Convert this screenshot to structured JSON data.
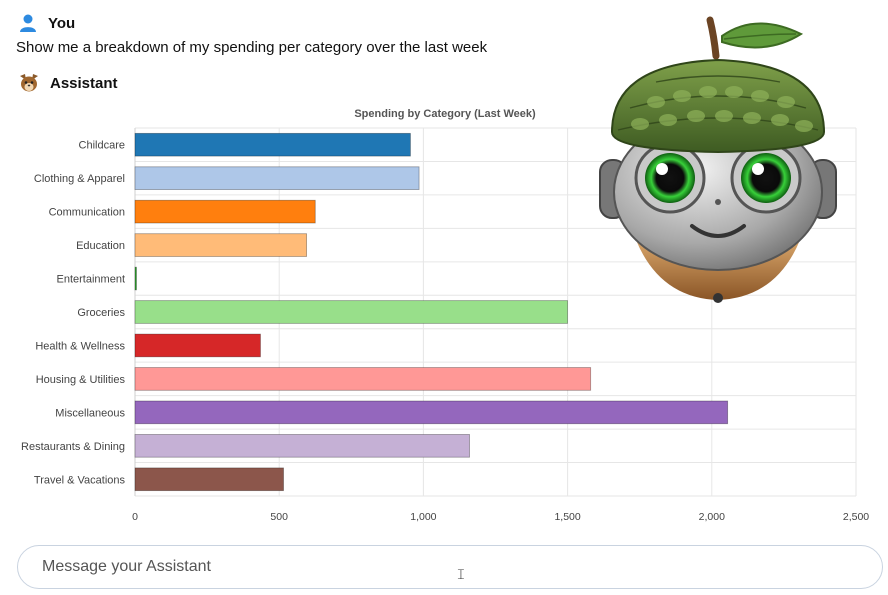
{
  "conversation": {
    "user": {
      "name": "You",
      "icon": "user-icon",
      "message": "Show me a breakdown of my spending per category over the last week"
    },
    "assistant": {
      "name": "Assistant",
      "icon": "squirrel-icon",
      "mascot": "acorn-robot-mascot"
    }
  },
  "chart_data": {
    "type": "bar",
    "orientation": "horizontal",
    "title": "Spending by Category (Last Week)",
    "xlabel": "",
    "ylabel": "",
    "xlim": [
      0,
      2500
    ],
    "x_ticks": [
      "0",
      "500",
      "1,000",
      "1,500",
      "2,000",
      "2,500"
    ],
    "x_tick_values": [
      0,
      500,
      1000,
      1500,
      2000,
      2500
    ],
    "grid": true,
    "categories": [
      "Childcare",
      "Clothing & Apparel",
      "Communication",
      "Education",
      "Entertainment",
      "Groceries",
      "Health & Wellness",
      "Housing & Utilities",
      "Miscellaneous",
      "Restaurants & Dining",
      "Travel & Vacations"
    ],
    "values": [
      955,
      985,
      625,
      595,
      5,
      1500,
      435,
      1580,
      2055,
      1160,
      515
    ],
    "colors": [
      "#1f77b4",
      "#aec7e8",
      "#ff7f0e",
      "#ffbb78",
      "#2ca02c",
      "#98df8a",
      "#d62728",
      "#ff9896",
      "#9467bd",
      "#c5b0d5",
      "#8c564b"
    ]
  },
  "composer": {
    "placeholder": "Message your Assistant"
  }
}
